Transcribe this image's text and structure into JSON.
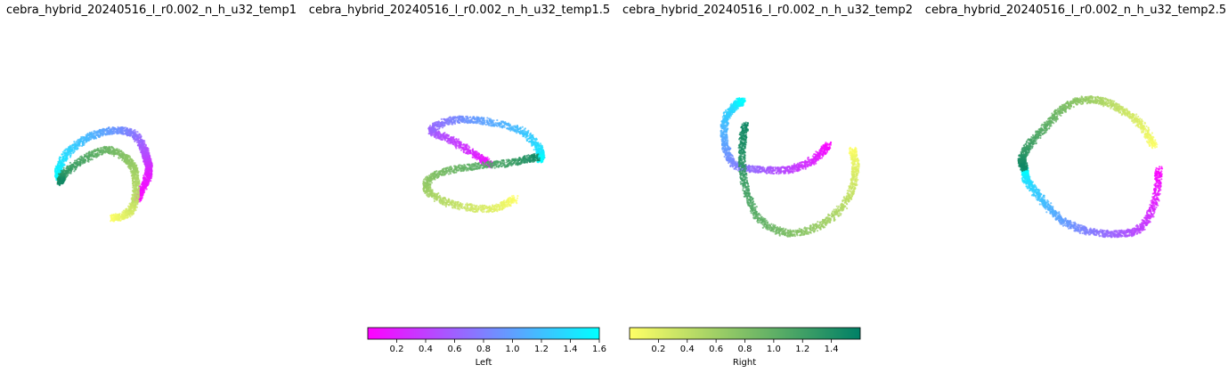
{
  "chart_data": [
    {
      "type": "scatter",
      "title": "cebra_hybrid_20240516_l_r0.002_n_h_u32_temp1",
      "axes": "off",
      "series": [
        {
          "colorbar": "Left",
          "points": [
            [
              -0.1,
              -0.35,
              0.0
            ],
            [
              -0.02,
              -0.2,
              0.1
            ],
            [
              0.02,
              -0.05,
              0.2
            ],
            [
              0.0,
              0.05,
              0.35
            ],
            [
              -0.03,
              0.15,
              0.5
            ],
            [
              -0.12,
              0.3,
              0.7
            ],
            [
              -0.3,
              0.35,
              0.9
            ],
            [
              -0.55,
              0.3,
              1.1
            ],
            [
              -0.78,
              0.15,
              1.3
            ],
            [
              -0.9,
              -0.05,
              1.5
            ],
            [
              -0.88,
              -0.15,
              1.6
            ]
          ]
        },
        {
          "colorbar": "Right",
          "points": [
            [
              -0.35,
              -0.55,
              0.0
            ],
            [
              -0.2,
              -0.5,
              0.2
            ],
            [
              -0.12,
              -0.35,
              0.4
            ],
            [
              -0.12,
              -0.1,
              0.55
            ],
            [
              -0.2,
              0.05,
              0.7
            ],
            [
              -0.4,
              0.15,
              0.9
            ],
            [
              -0.65,
              0.05,
              1.1
            ],
            [
              -0.85,
              -0.1,
              1.3
            ],
            [
              -0.88,
              -0.18,
              1.5
            ]
          ]
        }
      ]
    },
    {
      "type": "scatter",
      "title": "cebra_hybrid_20240516_l_r0.002_n_h_u32_temp1.5",
      "axes": "off",
      "series": [
        {
          "colorbar": "Left",
          "points": [
            [
              0.1,
              0.0,
              0.0
            ],
            [
              -0.05,
              0.1,
              0.2
            ],
            [
              -0.3,
              0.25,
              0.4
            ],
            [
              -0.5,
              0.35,
              0.6
            ],
            [
              -0.3,
              0.45,
              0.8
            ],
            [
              0.0,
              0.45,
              1.0
            ],
            [
              0.4,
              0.35,
              1.2
            ],
            [
              0.6,
              0.15,
              1.4
            ],
            [
              0.6,
              0.05,
              1.6
            ]
          ]
        },
        {
          "colorbar": "Right",
          "points": [
            [
              0.35,
              -0.35,
              0.0
            ],
            [
              0.1,
              -0.45,
              0.2
            ],
            [
              -0.3,
              -0.4,
              0.4
            ],
            [
              -0.55,
              -0.25,
              0.6
            ],
            [
              -0.45,
              -0.1,
              0.8
            ],
            [
              -0.1,
              -0.02,
              1.0
            ],
            [
              0.3,
              0.02,
              1.2
            ],
            [
              0.58,
              0.08,
              1.5
            ]
          ]
        }
      ]
    },
    {
      "type": "scatter",
      "title": "cebra_hybrid_20240516_l_r0.002_n_h_u32_temp2",
      "axes": "off",
      "series": [
        {
          "colorbar": "Left",
          "points": [
            [
              0.5,
              0.2,
              0.0
            ],
            [
              0.35,
              0.05,
              0.2
            ],
            [
              0.1,
              -0.05,
              0.4
            ],
            [
              -0.2,
              -0.05,
              0.6
            ],
            [
              -0.45,
              0.0,
              0.8
            ],
            [
              -0.55,
              0.2,
              1.0
            ],
            [
              -0.55,
              0.45,
              1.2
            ],
            [
              -0.45,
              0.6,
              1.4
            ],
            [
              -0.38,
              0.65,
              1.6
            ]
          ]
        },
        {
          "colorbar": "Right",
          "points": [
            [
              0.75,
              0.15,
              0.0
            ],
            [
              0.78,
              -0.05,
              0.2
            ],
            [
              0.7,
              -0.35,
              0.4
            ],
            [
              0.45,
              -0.6,
              0.6
            ],
            [
              0.1,
              -0.7,
              0.8
            ],
            [
              -0.2,
              -0.55,
              1.0
            ],
            [
              -0.35,
              -0.2,
              1.2
            ],
            [
              -0.38,
              0.15,
              1.4
            ],
            [
              -0.35,
              0.4,
              1.5
            ]
          ]
        }
      ]
    },
    {
      "type": "scatter",
      "title": "cebra_hybrid_20240516_l_r0.002_n_h_u32_temp2.5",
      "axes": "off",
      "series": [
        {
          "colorbar": "Left",
          "points": [
            [
              0.65,
              -0.1,
              0.0
            ],
            [
              0.6,
              -0.45,
              0.2
            ],
            [
              0.45,
              -0.7,
              0.4
            ],
            [
              0.2,
              -0.75,
              0.6
            ],
            [
              -0.1,
              -0.72,
              0.8
            ],
            [
              -0.35,
              -0.6,
              1.0
            ],
            [
              -0.55,
              -0.4,
              1.2
            ],
            [
              -0.7,
              -0.2,
              1.4
            ],
            [
              -0.72,
              -0.1,
              1.6
            ]
          ]
        },
        {
          "colorbar": "Right",
          "points": [
            [
              0.6,
              0.15,
              0.0
            ],
            [
              0.45,
              0.38,
              0.2
            ],
            [
              0.2,
              0.55,
              0.4
            ],
            [
              -0.05,
              0.62,
              0.6
            ],
            [
              -0.3,
              0.55,
              0.8
            ],
            [
              -0.5,
              0.35,
              1.0
            ],
            [
              -0.68,
              0.15,
              1.2
            ],
            [
              -0.75,
              0.0,
              1.4
            ],
            [
              -0.72,
              -0.08,
              1.5
            ]
          ]
        }
      ]
    }
  ],
  "colorbars": [
    {
      "label": "Left",
      "colormap": "cool",
      "range": [
        0,
        1.6
      ],
      "colors": [
        "#ff00ff",
        "#00ffff"
      ],
      "ticks": [
        "0.2",
        "0.4",
        "0.6",
        "0.8",
        "1.0",
        "1.2",
        "1.4",
        "1.6"
      ],
      "tick_values": [
        0.2,
        0.4,
        0.6,
        0.8,
        1.0,
        1.2,
        1.4,
        1.6
      ]
    },
    {
      "label": "Right",
      "colormap": "summer_r",
      "range": [
        0,
        1.6
      ],
      "colors": [
        "#ffff66",
        "#008066"
      ],
      "ticks": [
        "0.2",
        "0.4",
        "0.6",
        "0.8",
        "1.0",
        "1.2",
        "1.4"
      ],
      "tick_values": [
        0.2,
        0.4,
        0.6,
        0.8,
        1.0,
        1.2,
        1.4
      ]
    }
  ]
}
